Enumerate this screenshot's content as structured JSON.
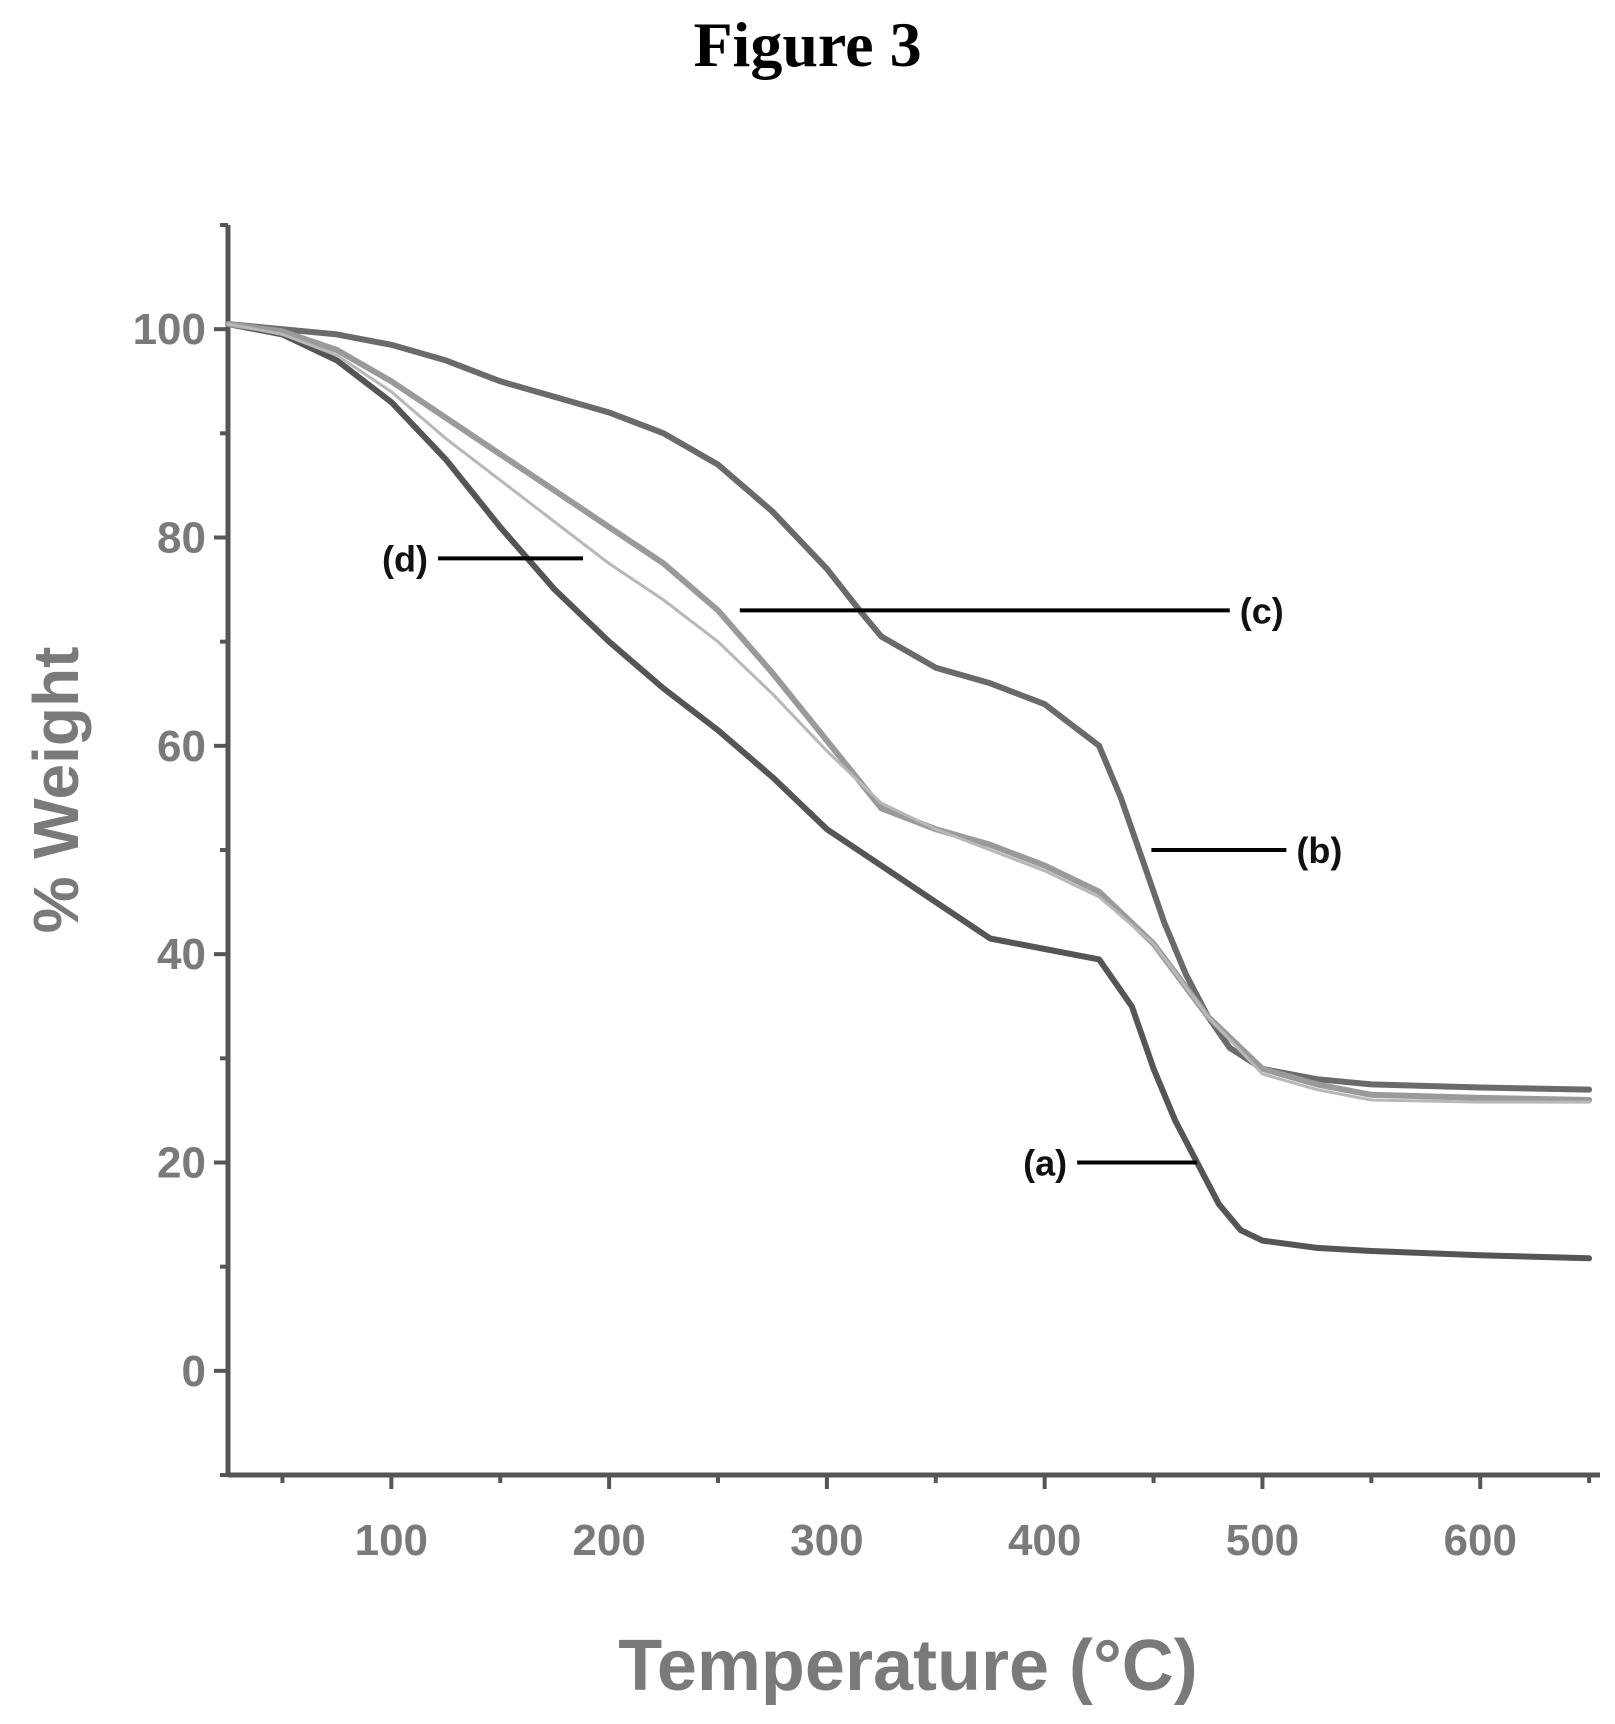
{
  "figure": {
    "title": "Figure 3"
  },
  "chart_data": {
    "type": "line",
    "title": "",
    "xlabel": "Temperature (°C)",
    "ylabel": "% Weight",
    "xlim": [
      25,
      655
    ],
    "ylim": [
      -10,
      110
    ],
    "xticks": [
      100,
      200,
      300,
      400,
      500,
      600
    ],
    "yticks": [
      0,
      20,
      40,
      60,
      80,
      100
    ],
    "grid": false,
    "legend": "none",
    "series": [
      {
        "name": "(a)",
        "color": "#555555",
        "x": [
          25,
          50,
          75,
          100,
          125,
          150,
          175,
          200,
          225,
          250,
          275,
          300,
          325,
          350,
          375,
          400,
          425,
          440,
          450,
          460,
          470,
          480,
          490,
          500,
          525,
          550,
          600,
          650
        ],
        "y": [
          100.5,
          99.5,
          97,
          93,
          87.5,
          81,
          75,
          70,
          65.5,
          61.5,
          57,
          52,
          48.5,
          45,
          41.5,
          40.5,
          39.5,
          35,
          29,
          24,
          20,
          16,
          13.5,
          12.5,
          11.8,
          11.5,
          11.1,
          10.8
        ]
      },
      {
        "name": "(b)",
        "color": "#6a6a6a",
        "x": [
          25,
          50,
          75,
          100,
          125,
          150,
          175,
          200,
          225,
          250,
          275,
          300,
          315,
          325,
          350,
          375,
          400,
          425,
          435,
          445,
          455,
          465,
          475,
          485,
          500,
          525,
          550,
          600,
          650
        ],
        "y": [
          100.5,
          100,
          99.5,
          98.5,
          97,
          95,
          93.5,
          92,
          90,
          87,
          82.5,
          77,
          73,
          70.5,
          67.5,
          66,
          64,
          60,
          55,
          49,
          43,
          38,
          34,
          31,
          29,
          28,
          27.5,
          27.2,
          27
        ]
      },
      {
        "name": "(c)",
        "color": "#9a9a9a",
        "x": [
          25,
          50,
          75,
          100,
          125,
          150,
          175,
          200,
          225,
          250,
          275,
          300,
          325,
          350,
          375,
          400,
          425,
          450,
          475,
          500,
          525,
          550,
          600,
          650
        ],
        "y": [
          100.5,
          99.8,
          98,
          95,
          91.5,
          88,
          84.5,
          81,
          77.5,
          73,
          67,
          60.5,
          54,
          52,
          50.5,
          48.5,
          46,
          41,
          34,
          29,
          27.5,
          26.5,
          26.2,
          26
        ]
      },
      {
        "name": "(d)",
        "color": "#b8b8b8",
        "x": [
          25,
          50,
          75,
          100,
          125,
          150,
          175,
          200,
          225,
          250,
          275,
          300,
          325,
          350,
          375,
          400,
          425,
          450,
          475,
          500,
          525,
          550,
          600,
          650
        ],
        "y": [
          100.5,
          99.5,
          97.5,
          94,
          89.5,
          85.5,
          81.5,
          77.5,
          74,
          70,
          65,
          59.5,
          54.5,
          52,
          50,
          48,
          45.5,
          41,
          34,
          28.5,
          27,
          26,
          25.8,
          25.8
        ]
      }
    ],
    "annotations": [
      {
        "text": "(a)",
        "x": 470,
        "y": 20
      },
      {
        "text": "(b)",
        "x": 449,
        "y": 50
      },
      {
        "text": "(c)",
        "x": 260,
        "y": 73
      },
      {
        "text": "(d)",
        "x": 188,
        "y": 78
      }
    ]
  }
}
